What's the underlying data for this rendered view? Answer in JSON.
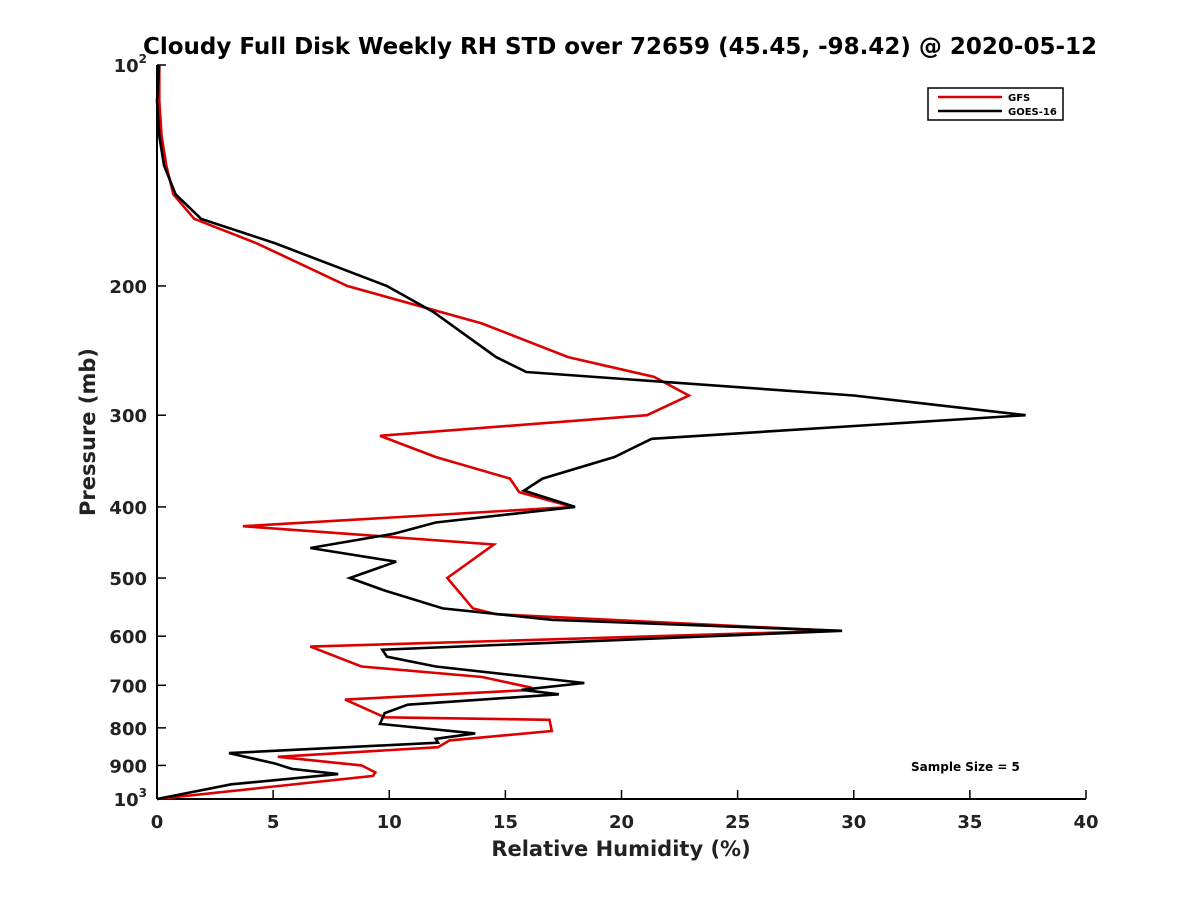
{
  "chart_data": {
    "type": "line",
    "title": "Cloudy Full Disk Weekly RH STD over 72659 (45.45, -98.42) @ 2020-05-12",
    "xlabel": "Relative Humidity (%)",
    "ylabel": "Pressure (mb)",
    "xlim": [
      0,
      40
    ],
    "ylim": [
      100,
      1000
    ],
    "y_scale": "log",
    "y_reversed": true,
    "x_ticks": [
      0,
      5,
      10,
      15,
      20,
      25,
      30,
      35,
      40
    ],
    "x_tick_labels": [
      "0",
      "5",
      "10",
      "15",
      "20",
      "25",
      "30",
      "35",
      "40"
    ],
    "y_ticks": [
      {
        "value": 100,
        "base": "10",
        "exp": "2"
      },
      {
        "value": 200,
        "label": "200"
      },
      {
        "value": 300,
        "label": "300"
      },
      {
        "value": 400,
        "label": "400"
      },
      {
        "value": 500,
        "label": "500"
      },
      {
        "value": 600,
        "label": "600"
      },
      {
        "value": 700,
        "label": "700"
      },
      {
        "value": 800,
        "label": "800"
      },
      {
        "value": 900,
        "label": "900"
      },
      {
        "value": 1000,
        "base": "10",
        "exp": "3"
      }
    ],
    "grid": false,
    "legend_position": "top-right",
    "annotation": "Sample Size = 5",
    "series": [
      {
        "name": "GFS",
        "color": "#dd0000",
        "points": [
          [
            0.1,
            100
          ],
          [
            0.1,
            112
          ],
          [
            0.2,
            125
          ],
          [
            0.4,
            137
          ],
          [
            0.7,
            150
          ],
          [
            1.6,
            162
          ],
          [
            4.3,
            175
          ],
          [
            8.2,
            200
          ],
          [
            14,
            225
          ],
          [
            17.7,
            250
          ],
          [
            21.4,
            266
          ],
          [
            22.9,
            282
          ],
          [
            21.1,
            300
          ],
          [
            9.6,
            320
          ],
          [
            12,
            342
          ],
          [
            15.2,
            366
          ],
          [
            15.6,
            382
          ],
          [
            17.9,
            400
          ],
          [
            3.7,
            425
          ],
          [
            14.5,
            450
          ],
          [
            12.5,
            500
          ],
          [
            13.6,
            550
          ],
          [
            14.6,
            560
          ],
          [
            29.2,
            590
          ],
          [
            6.6,
            620
          ],
          [
            8.8,
            660
          ],
          [
            14,
            682
          ],
          [
            16.1,
            705
          ],
          [
            16.2,
            710
          ],
          [
            8.1,
            732
          ],
          [
            9.8,
            774
          ],
          [
            16.9,
            780
          ],
          [
            17,
            808
          ],
          [
            12.6,
            832
          ],
          [
            12.1,
            850
          ],
          [
            5.2,
            876
          ],
          [
            8.8,
            900
          ],
          [
            9.4,
            920
          ],
          [
            9.3,
            930
          ],
          [
            0,
            1000
          ]
        ]
      },
      {
        "name": "GOES-16",
        "color": "#000000",
        "points": [
          [
            0.1,
            100
          ],
          [
            0,
            112
          ],
          [
            0.1,
            125
          ],
          [
            0.3,
            137
          ],
          [
            0.8,
            150
          ],
          [
            1.9,
            162
          ],
          [
            5.1,
            175
          ],
          [
            9.9,
            200
          ],
          [
            11.9,
            217
          ],
          [
            14.6,
            250
          ],
          [
            15.9,
            262
          ],
          [
            30,
            282
          ],
          [
            37.4,
            300
          ],
          [
            21.3,
            323
          ],
          [
            19.7,
            342
          ],
          [
            16.6,
            366
          ],
          [
            15.8,
            380
          ],
          [
            18,
            400
          ],
          [
            12,
            420
          ],
          [
            10.2,
            435
          ],
          [
            6.6,
            455
          ],
          [
            10.3,
            475
          ],
          [
            8.3,
            500
          ],
          [
            9.8,
            520
          ],
          [
            12.3,
            550
          ],
          [
            17,
            570
          ],
          [
            29.5,
            590
          ],
          [
            9.7,
            626
          ],
          [
            9.9,
            640
          ],
          [
            12,
            660
          ],
          [
            18.4,
            695
          ],
          [
            15.7,
            710
          ],
          [
            17.3,
            720
          ],
          [
            10.8,
            744
          ],
          [
            9.8,
            764
          ],
          [
            9.6,
            790
          ],
          [
            13.7,
            814
          ],
          [
            12,
            828
          ],
          [
            12.1,
            838
          ],
          [
            3.1,
            866
          ],
          [
            5.1,
            895
          ],
          [
            5.8,
            910
          ],
          [
            7.8,
            925
          ],
          [
            3.2,
            955
          ],
          [
            0,
            1000
          ]
        ]
      }
    ]
  }
}
